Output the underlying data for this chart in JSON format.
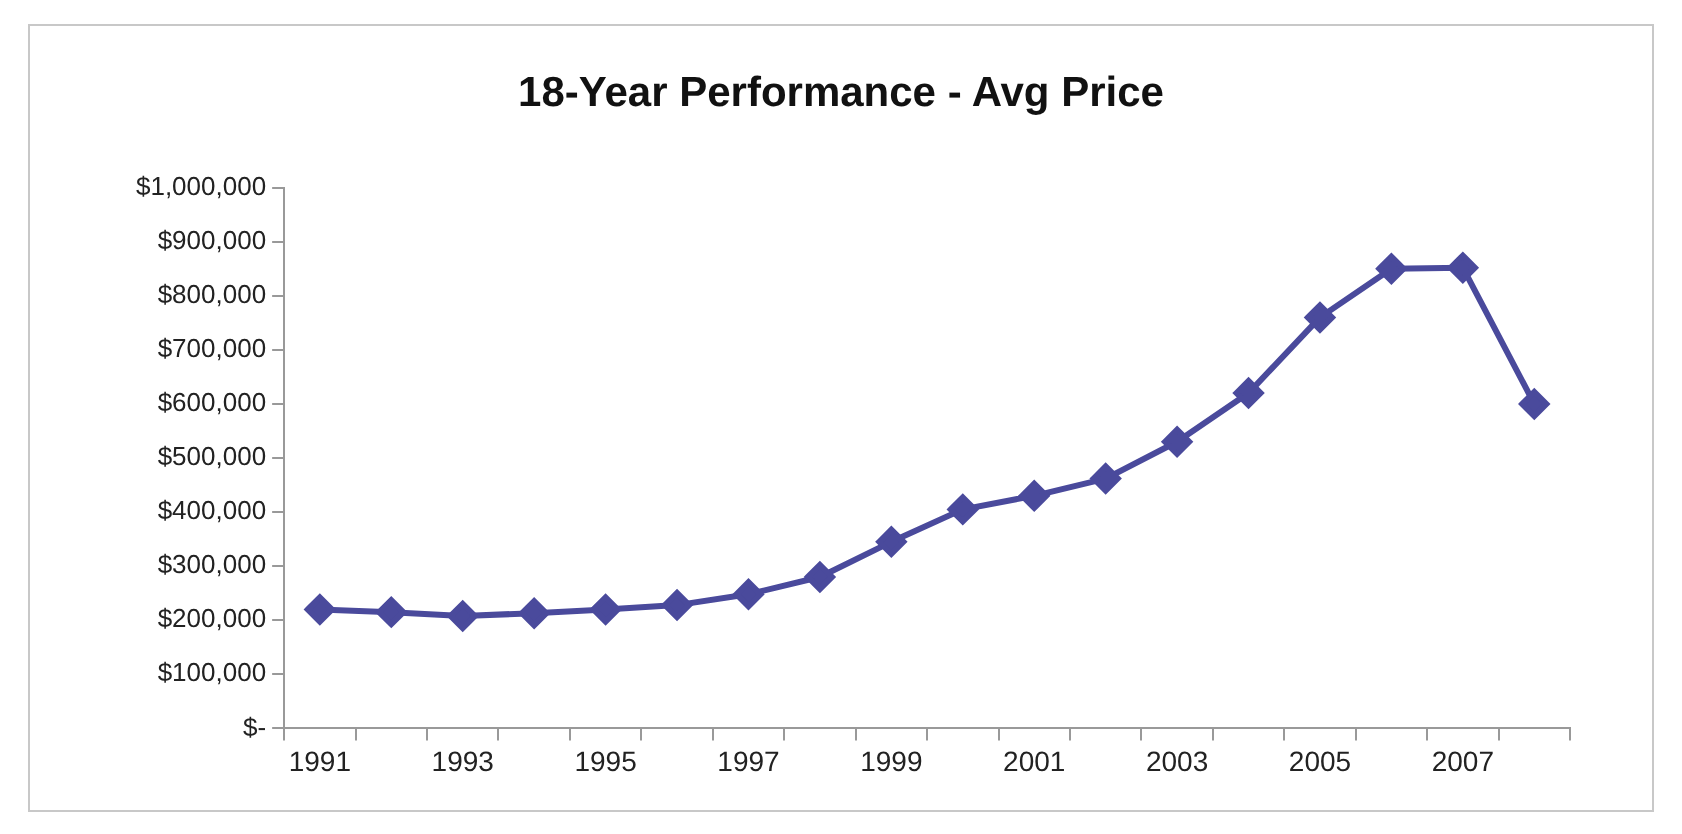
{
  "chart_data": {
    "type": "line",
    "title": "18-Year Performance - Avg Price",
    "categories": [
      "1991",
      null,
      "1993",
      null,
      "1995",
      null,
      "1997",
      null,
      "1999",
      null,
      "2001",
      null,
      "2003",
      null,
      "2005",
      null,
      "2007",
      null
    ],
    "series": [
      {
        "color": "#4a4a9c",
        "values": [
          220000,
          215000,
          208000,
          213000,
          220000,
          228000,
          248000,
          280000,
          345000,
          405000,
          430000,
          462000,
          530000,
          620000,
          760000,
          850000,
          852000,
          600000
        ]
      }
    ],
    "ylim": [
      0,
      1000000
    ],
    "yticks": [
      {
        "value": 0,
        "label": "$-"
      },
      {
        "value": 100000,
        "label": "$100,000"
      },
      {
        "value": 200000,
        "label": "$200,000"
      },
      {
        "value": 300000,
        "label": "$300,000"
      },
      {
        "value": 400000,
        "label": "$400,000"
      },
      {
        "value": 500000,
        "label": "$500,000"
      },
      {
        "value": 600000,
        "label": "$600,000"
      },
      {
        "value": 700000,
        "label": "$700,000"
      },
      {
        "value": 800000,
        "label": "$800,000"
      },
      {
        "value": 900000,
        "label": "$900,000"
      },
      {
        "value": 1000000,
        "label": "$1,000,000"
      }
    ],
    "grid": false,
    "legend": false,
    "marker": "diamond",
    "line_style": "solid"
  }
}
